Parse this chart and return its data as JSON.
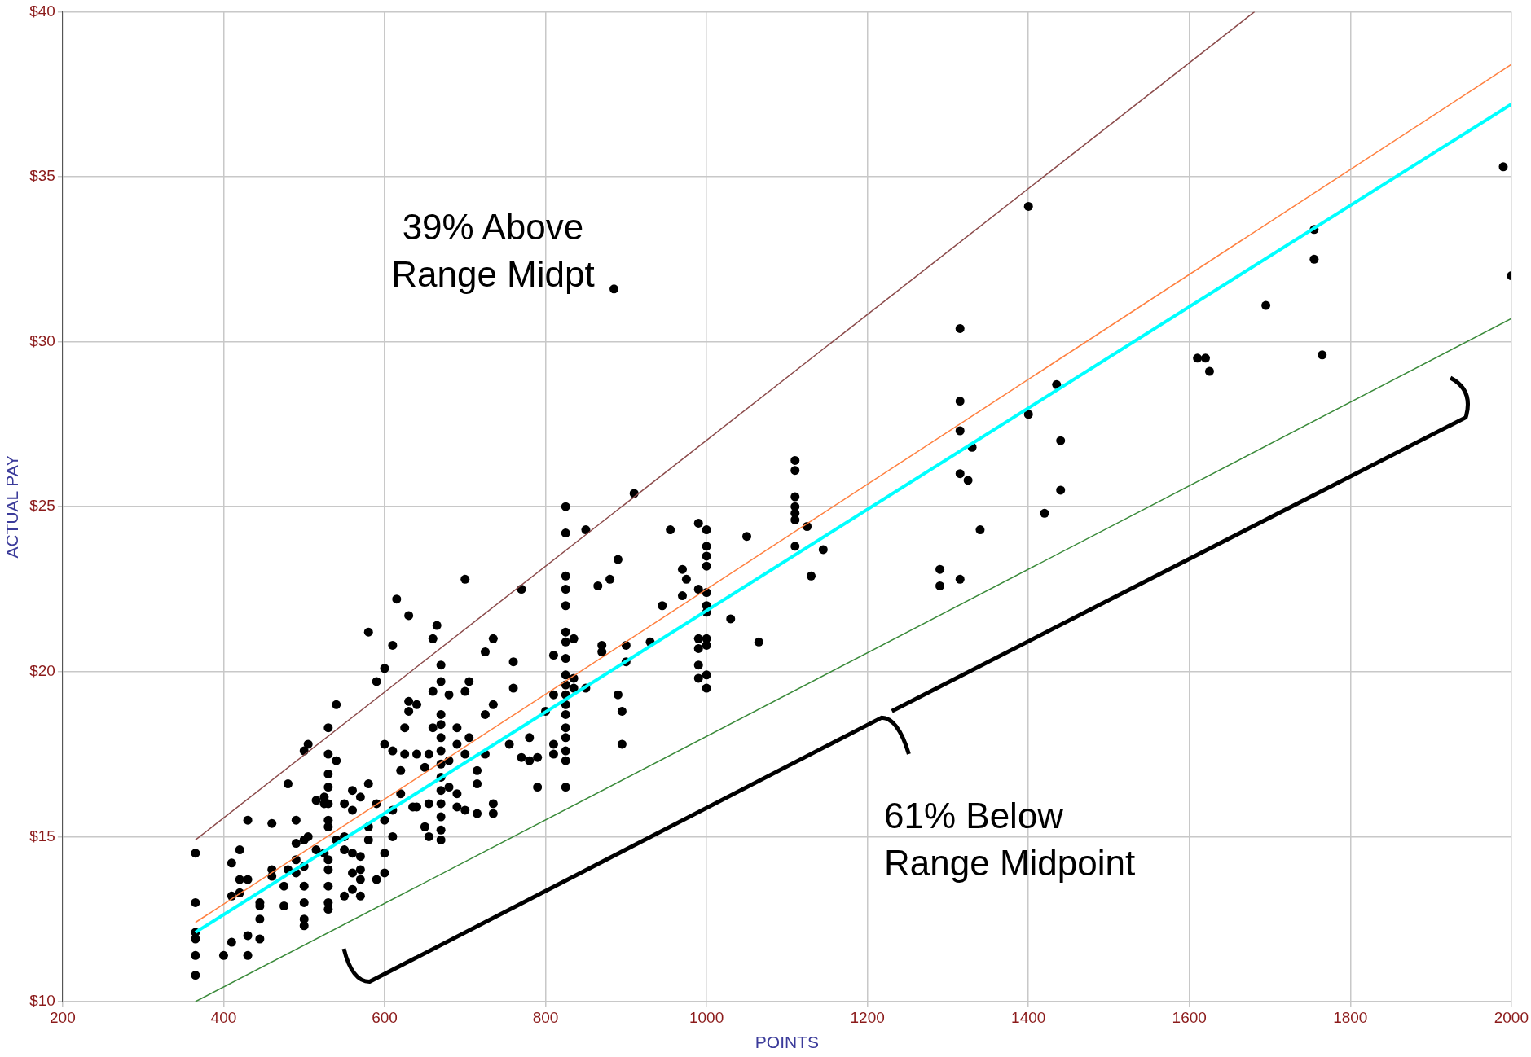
{
  "chart_data": {
    "type": "scatter",
    "xlabel": "POINTS",
    "ylabel": "ACTUAL PAY",
    "xlim": [
      200,
      2000
    ],
    "xticks": [
      200,
      400,
      600,
      800,
      1000,
      1200,
      1400,
      1600,
      1800,
      2000
    ],
    "ylim": [
      10,
      40
    ],
    "yticks": [
      {
        "value": 10,
        "label": "$10"
      },
      {
        "value": 15,
        "label": "$15"
      },
      {
        "value": 20,
        "label": "$20"
      },
      {
        "value": 25,
        "label": "$25"
      },
      {
        "value": 30,
        "label": "$30"
      },
      {
        "value": 35,
        "label": "$35"
      },
      {
        "value": 40,
        "label": "$40"
      }
    ],
    "grid": true,
    "legend": false,
    "marker": "circle",
    "annotations": [
      "39% Above\nRange Midpt",
      "61% Below\nRange Midpoint"
    ],
    "series": [
      {
        "type": "line",
        "color": "#8b4a4a",
        "marker": "none",
        "x": [
          365,
          1681
        ],
        "values": [
          14.9,
          40
        ]
      },
      {
        "type": "line",
        "color": "#ff8040",
        "marker": "none",
        "x": [
          365,
          2000
        ],
        "values": [
          12.4,
          38.4
        ]
      },
      {
        "type": "line",
        "color": "#3a8a3a",
        "marker": "none",
        "x": [
          365,
          2000
        ],
        "values": [
          10.0,
          30.7
        ]
      },
      {
        "type": "scatter",
        "color": "#000000",
        "x": [
          365,
          365,
          365,
          365,
          365,
          365,
          400,
          410,
          410,
          410,
          420,
          420,
          420,
          430,
          430,
          430,
          430,
          445,
          445,
          445,
          445,
          460,
          460,
          460,
          475,
          475,
          480,
          480,
          490,
          490,
          490,
          490,
          500,
          500,
          500,
          500,
          500,
          500,
          500,
          505,
          505,
          515,
          515,
          525,
          525,
          525,
          530,
          530,
          530,
          530,
          530,
          530,
          530,
          530,
          530,
          530,
          530,
          530,
          540,
          540,
          540,
          550,
          550,
          550,
          550,
          560,
          560,
          560,
          560,
          560,
          570,
          570,
          570,
          570,
          570,
          580,
          580,
          580,
          580,
          590,
          590,
          590,
          600,
          600,
          600,
          600,
          600,
          610,
          610,
          610,
          610,
          615,
          620,
          620,
          625,
          625,
          630,
          630,
          630,
          635,
          640,
          640,
          640,
          650,
          650,
          655,
          655,
          655,
          660,
          660,
          660,
          665,
          670,
          670,
          670,
          670,
          670,
          670,
          670,
          670,
          670,
          670,
          670,
          670,
          670,
          680,
          680,
          680,
          690,
          690,
          690,
          690,
          700,
          700,
          700,
          700,
          705,
          705,
          715,
          715,
          715,
          725,
          725,
          725,
          735,
          735,
          735,
          735,
          755,
          760,
          760,
          770,
          770,
          780,
          780,
          790,
          790,
          800,
          810,
          810,
          810,
          810,
          825,
          825,
          825,
          825,
          825,
          825,
          825,
          825,
          825,
          825,
          825,
          825,
          825,
          825,
          825,
          825,
          825,
          825,
          835,
          835,
          835,
          850,
          850,
          865,
          870,
          870,
          880,
          885,
          890,
          890,
          895,
          895,
          900,
          900,
          910,
          930,
          945,
          955,
          970,
          970,
          975,
          990,
          990,
          990,
          990,
          990,
          990,
          1000,
          1000,
          1000,
          1000,
          1000,
          1000,
          1000,
          1000,
          1000,
          1000,
          1000,
          1030,
          1050,
          1065,
          1110,
          1110,
          1110,
          1110,
          1110,
          1110,
          1110,
          1125,
          1130,
          1145,
          1290,
          1290,
          1315,
          1315,
          1315,
          1315,
          1315,
          1325,
          1330,
          1340,
          1400,
          1400,
          1420,
          1435,
          1440,
          1440,
          1610,
          1620,
          1625,
          1695,
          1755,
          1755,
          1765,
          1990,
          2000
        ],
        "values": [
          14.5,
          13.0,
          12.1,
          11.9,
          11.4,
          10.8,
          11.4,
          11.8,
          14.2,
          13.2,
          13.7,
          14.6,
          13.3,
          12.0,
          11.4,
          13.7,
          15.5,
          11.9,
          12.5,
          13.0,
          12.9,
          14.0,
          13.8,
          15.4,
          13.5,
          12.9,
          16.6,
          14.0,
          15.5,
          14.8,
          14.3,
          13.9,
          17.6,
          14.9,
          13.5,
          13.0,
          12.5,
          12.3,
          14.1,
          17.8,
          15.0,
          16.1,
          14.6,
          16.2,
          16.0,
          14.5,
          18.3,
          17.5,
          16.9,
          16.5,
          16.0,
          15.5,
          15.3,
          14.3,
          14.0,
          13.5,
          13.0,
          12.8,
          19.0,
          17.3,
          14.9,
          16.0,
          13.2,
          14.6,
          15.0,
          16.4,
          15.8,
          13.9,
          13.4,
          14.5,
          16.2,
          14.0,
          13.2,
          14.4,
          13.7,
          16.6,
          21.2,
          15.3,
          14.9,
          19.7,
          16.0,
          13.7,
          20.1,
          17.8,
          15.5,
          14.5,
          13.9,
          20.8,
          17.6,
          15.8,
          15.0,
          22.2,
          17.0,
          16.3,
          17.5,
          18.3,
          21.7,
          18.8,
          19.1,
          15.9,
          17.5,
          19.0,
          15.9,
          15.3,
          17.1,
          15.0,
          16.0,
          17.5,
          21.0,
          19.4,
          18.3,
          21.4,
          20.2,
          19.7,
          18.7,
          18.4,
          18.0,
          17.6,
          17.2,
          16.8,
          16.4,
          16.0,
          15.6,
          15.2,
          14.9,
          16.5,
          19.3,
          17.3,
          17.8,
          16.3,
          15.9,
          18.3,
          19.4,
          15.8,
          17.5,
          22.8,
          19.7,
          18.0,
          17.0,
          16.6,
          15.7,
          20.6,
          17.5,
          18.7,
          21.0,
          19.0,
          16.0,
          15.7,
          17.8,
          20.3,
          19.5,
          22.5,
          17.4,
          17.3,
          18.0,
          16.5,
          17.4,
          18.8,
          20.5,
          19.3,
          17.8,
          17.5,
          25.0,
          24.2,
          22.9,
          22.5,
          22.0,
          21.2,
          20.9,
          20.4,
          19.9,
          19.6,
          19.3,
          19.0,
          18.7,
          18.3,
          18.0,
          17.6,
          17.3,
          16.5,
          21.0,
          19.5,
          19.8,
          24.3,
          19.5,
          22.6,
          20.8,
          20.6,
          22.8,
          31.6,
          23.4,
          19.3,
          18.8,
          17.8,
          20.3,
          20.8,
          25.4,
          20.9,
          22.0,
          24.3,
          22.3,
          23.1,
          22.8,
          24.5,
          22.5,
          21.0,
          20.7,
          20.2,
          19.8,
          24.3,
          23.8,
          23.5,
          23.2,
          22.4,
          22.0,
          21.8,
          21.0,
          20.8,
          19.9,
          19.5,
          21.6,
          24.1,
          20.9,
          26.4,
          26.1,
          25.3,
          25.0,
          24.8,
          24.6,
          23.8,
          24.4,
          22.9,
          23.7,
          23.1,
          22.6,
          30.4,
          28.2,
          27.3,
          26.0,
          22.8,
          25.8,
          26.8,
          24.3,
          34.1,
          27.8,
          24.8,
          28.7,
          27.0,
          25.5,
          29.5,
          29.5,
          29.1,
          31.1,
          33.4,
          32.5,
          29.6,
          35.3,
          32.0
        ]
      },
      {
        "type": "line",
        "color": "#00ffff",
        "marker": "none",
        "x": [
          365,
          2000
        ],
        "values": [
          12.1,
          37.2
        ]
      }
    ]
  }
}
